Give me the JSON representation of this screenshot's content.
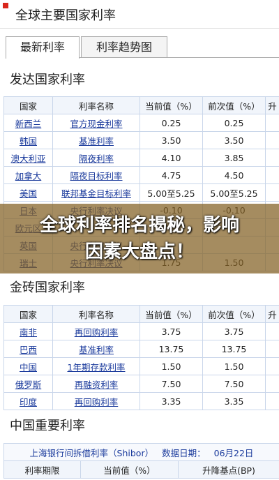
{
  "header": {
    "title": "全球主要国家利率"
  },
  "tabs": [
    "最新利率",
    "利率趋势图"
  ],
  "sections": [
    {
      "title": "发达国家利率",
      "table": {
        "columns": [
          "国家",
          "利率名称",
          "当前值（%）",
          "前次值（%）",
          "升"
        ],
        "rows": [
          [
            "新西兰",
            "官方现金利率",
            "0.25",
            "0.25"
          ],
          [
            "韩国",
            "基准利率",
            "3.50",
            "3.50"
          ],
          [
            "澳大利亚",
            "隔夜利率",
            "4.10",
            "3.85"
          ],
          [
            "加拿大",
            "隔夜目标利率",
            "4.75",
            "4.50"
          ],
          [
            "美国",
            "联邦基金目标利率",
            "5.00至5.25",
            "5.00至5.25"
          ],
          [
            "日本",
            "央行利率决议",
            "-0.10",
            "-0.10"
          ],
          [
            "欧元区"
          ],
          [
            "英国",
            "央行利率决议"
          ],
          [
            "瑞士",
            "央行利率决议",
            "1.75",
            "1.50"
          ]
        ]
      }
    },
    {
      "title": "金砖国家利率",
      "table": {
        "columns": [
          "国家",
          "利率名称",
          "当前值（%）",
          "前次值（%）",
          "升"
        ],
        "rows": [
          [
            "南非",
            "再回购利率",
            "3.75",
            "3.75"
          ],
          [
            "巴西",
            "基准利率",
            "13.75",
            "13.75"
          ],
          [
            "中国",
            "1年期存款利率",
            "1.50",
            "1.50"
          ],
          [
            "俄罗斯",
            "再融资利率",
            "7.50",
            "7.50"
          ],
          [
            "印度",
            "再回购利率",
            "3.35",
            "3.35"
          ]
        ]
      }
    },
    {
      "title": "中国重要利率",
      "table": {
        "caption": [
          "上海银行间拆借利率（Shibor）",
          "数据日期：",
          "06月22日"
        ],
        "columns": [
          "利率期限",
          "当前值（%）",
          "升降基点(BP)"
        ],
        "rows": []
      }
    }
  ],
  "banner": "全球利率排名揭秘，影响因素大盘点！"
}
